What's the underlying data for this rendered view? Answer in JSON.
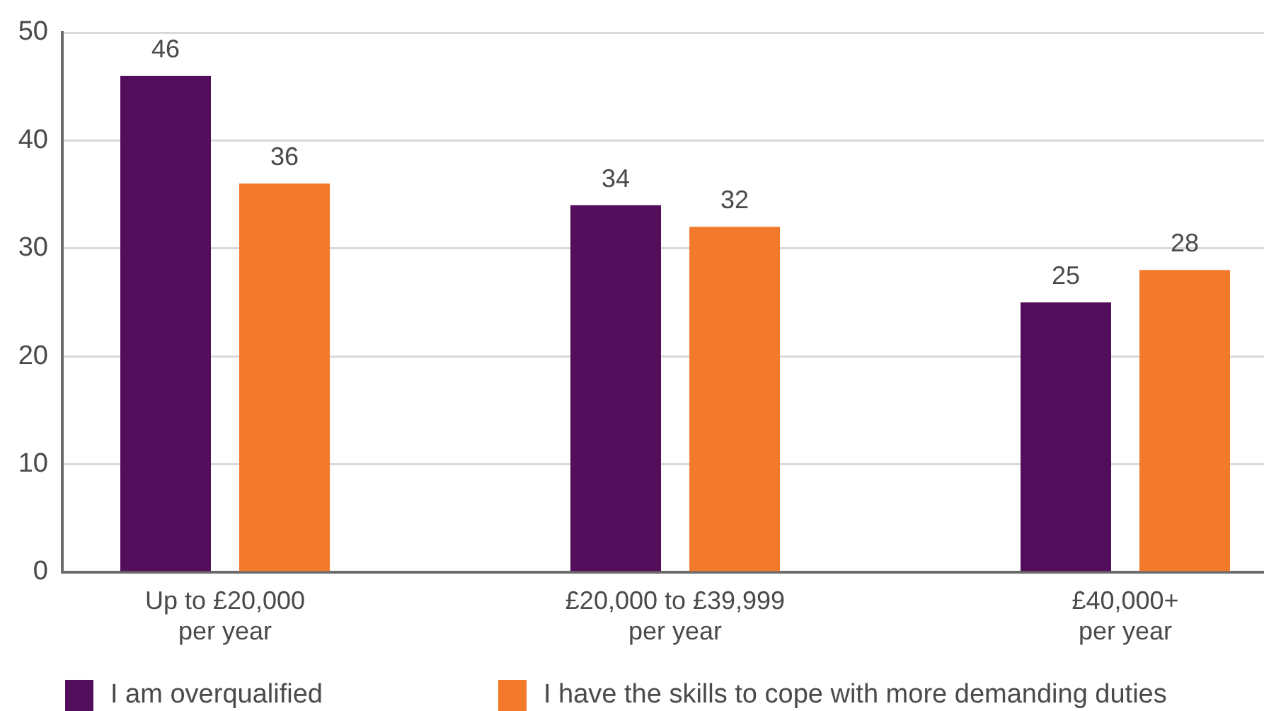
{
  "chart_data": {
    "type": "bar",
    "categories": [
      "Up to £20,000\nper year",
      "£20,000 to £39,999\nper year",
      "£40,000+\nper year"
    ],
    "series": [
      {
        "name": "I am overqualified",
        "color": "#530e5b",
        "values": [
          46,
          34,
          25
        ]
      },
      {
        "name": "I have the skills to cope with more demanding duties",
        "color": "#f37a2b",
        "values": [
          36,
          32,
          28
        ]
      }
    ],
    "ylim": [
      0,
      50
    ],
    "yticks": [
      0,
      10,
      20,
      30,
      40,
      50
    ],
    "grid": "y",
    "legend": "bottom",
    "data_labels": true
  }
}
